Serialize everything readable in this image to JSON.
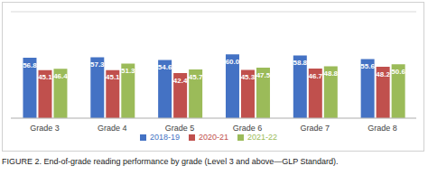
{
  "chart_data": {
    "type": "bar",
    "title": "FIGURE 2. End-of-grade reading performance by grade (Level 3 and above—GLP Standard).",
    "categories": [
      "Grade 3",
      "Grade 4",
      "Grade 5",
      "Grade 6",
      "Grade 7",
      "Grade 8"
    ],
    "series": [
      {
        "name": "2018-19",
        "color": "#4472c4",
        "values": [
          56.8,
          57.3,
          54.6,
          60.0,
          58.8,
          55.6
        ],
        "value_labels": [
          "56.8",
          "57.3",
          "54.6",
          "60.0",
          "58.8",
          "55.6"
        ]
      },
      {
        "name": "2020-21",
        "color": "#c0504d",
        "values": [
          45.1,
          45.1,
          42.4,
          45.3,
          46.7,
          48.2
        ],
        "value_labels": [
          "45.1",
          "45.1",
          "42.4",
          "45.3",
          "46.7",
          "48.2"
        ]
      },
      {
        "name": "2021-22",
        "color": "#9bbb59",
        "values": [
          46.4,
          51.3,
          45.7,
          47.5,
          48.8,
          50.6
        ],
        "value_labels": [
          "46.4",
          "51.3",
          "45.7",
          "47.5",
          "48.8",
          "50.6"
        ]
      }
    ],
    "ylim": [
      0,
      100
    ],
    "yticks": [
      0,
      20,
      40,
      60,
      80,
      100
    ],
    "grid": true,
    "legend": "bottom",
    "data_labels": true,
    "tick_labels": "x"
  }
}
